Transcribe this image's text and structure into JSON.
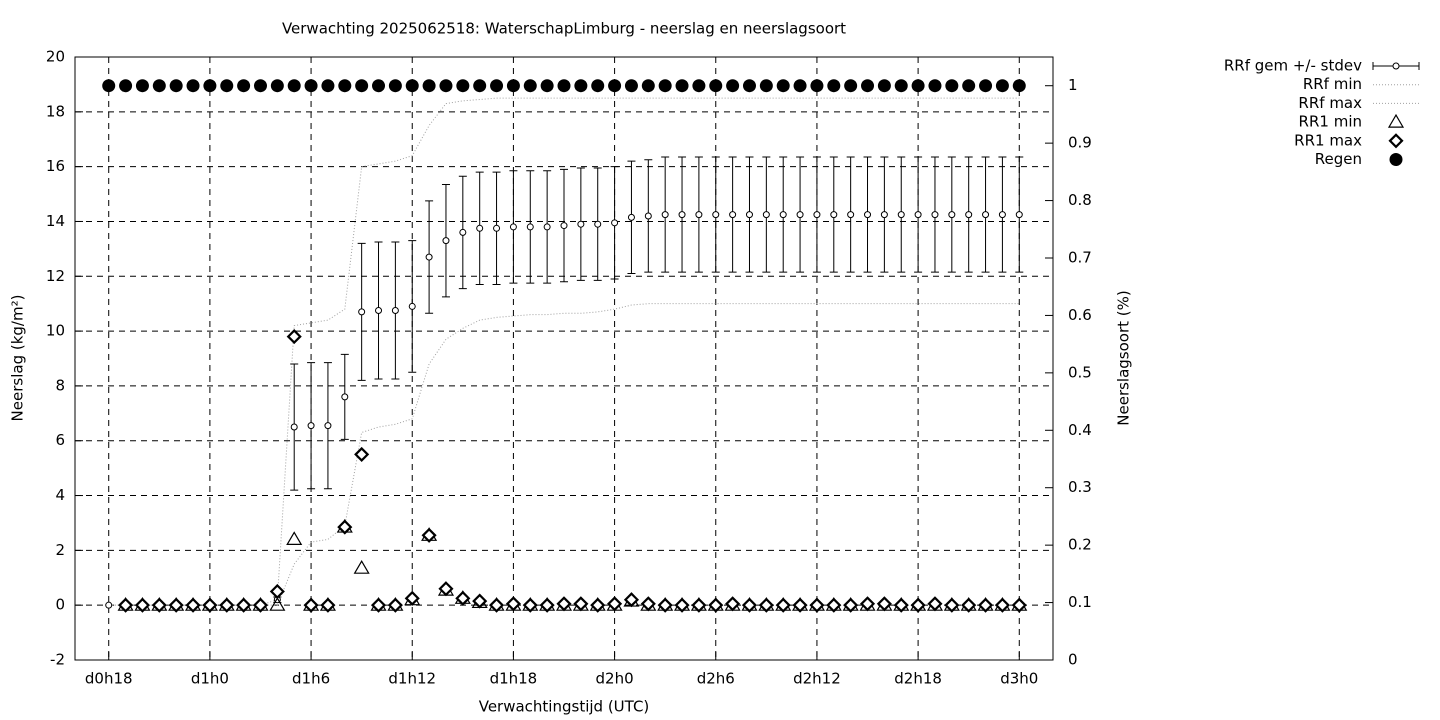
{
  "chart_data": {
    "type": "scatter",
    "title": "Verwachting 2025062518: WaterschapLimburg - neerslag en neerslagsoort",
    "xlabel": "Verwachtingstijd (UTC)",
    "ylabel": "Neerslag (kg/m²)",
    "y2label": "Neerslagsoort (%)",
    "x": [
      18,
      19,
      20,
      21,
      22,
      23,
      24,
      25,
      26,
      27,
      28,
      29,
      30,
      31,
      32,
      33,
      34,
      35,
      36,
      37,
      38,
      39,
      40,
      41,
      42,
      43,
      44,
      45,
      46,
      47,
      48,
      49,
      50,
      51,
      52,
      53,
      54,
      55,
      56,
      57,
      58,
      59,
      60,
      61,
      62,
      63,
      64,
      65,
      66,
      67,
      68,
      69,
      70,
      71,
      72
    ],
    "xlim": [
      16,
      74
    ],
    "xticks": [
      {
        "value": 18,
        "label": "d0h18"
      },
      {
        "value": 24,
        "label": "d1h0"
      },
      {
        "value": 30,
        "label": "d1h6"
      },
      {
        "value": 36,
        "label": "d1h12"
      },
      {
        "value": 42,
        "label": "d1h18"
      },
      {
        "value": 48,
        "label": "d2h0"
      },
      {
        "value": 54,
        "label": "d2h6"
      },
      {
        "value": 60,
        "label": "d2h12"
      },
      {
        "value": 66,
        "label": "d2h18"
      },
      {
        "value": 72,
        "label": "d3h0"
      }
    ],
    "ylim": [
      -2,
      20
    ],
    "yticks": [
      -2,
      0,
      2,
      4,
      6,
      8,
      10,
      12,
      14,
      16,
      18,
      20
    ],
    "y2lim": [
      0,
      1.05
    ],
    "y2ticks": [
      0,
      0.1,
      0.2,
      0.3,
      0.4,
      0.5,
      0.6,
      0.7,
      0.8,
      0.9,
      1
    ],
    "grid": true,
    "legend": "right",
    "series": [
      {
        "name": "RRf gem +/- stdev",
        "style": "errorbars",
        "marker": "circle",
        "color": "#000000",
        "values": [
          0,
          0,
          0,
          0,
          0,
          0,
          0,
          0,
          0,
          0,
          0.2,
          6.5,
          6.55,
          6.55,
          7.6,
          10.7,
          10.75,
          10.75,
          10.9,
          12.7,
          13.3,
          13.6,
          13.75,
          13.75,
          13.8,
          13.8,
          13.8,
          13.85,
          13.9,
          13.9,
          13.95,
          14.15,
          14.2,
          14.25,
          14.25,
          14.25,
          14.25,
          14.25,
          14.25,
          14.25,
          14.25,
          14.25,
          14.25,
          14.25,
          14.25,
          14.25,
          14.25,
          14.25,
          14.25,
          14.25,
          14.25,
          14.25,
          14.25,
          14.25,
          14.25
        ],
        "errors": [
          0,
          0,
          0,
          0,
          0,
          0,
          0,
          0,
          0,
          0,
          0.1,
          2.3,
          2.3,
          2.3,
          1.55,
          2.5,
          2.5,
          2.5,
          2.4,
          2.05,
          2.05,
          2.05,
          2.05,
          2.05,
          2.05,
          2.05,
          2.05,
          2.05,
          2.05,
          2.05,
          2.05,
          2.05,
          2.05,
          2.1,
          2.1,
          2.1,
          2.1,
          2.1,
          2.1,
          2.1,
          2.1,
          2.1,
          2.1,
          2.1,
          2.1,
          2.1,
          2.1,
          2.1,
          2.1,
          2.1,
          2.1,
          2.1,
          2.1,
          2.1,
          2.1
        ]
      },
      {
        "name": "RRf min",
        "style": "line",
        "color": "#a0a0a0",
        "values": [
          0,
          0,
          0,
          0,
          0,
          0,
          0,
          0,
          0,
          0,
          0,
          1.5,
          2.3,
          2.4,
          2.9,
          6.3,
          6.5,
          6.6,
          6.8,
          8.8,
          9.7,
          10.1,
          10.4,
          10.5,
          10.55,
          10.6,
          10.6,
          10.65,
          10.65,
          10.7,
          10.8,
          10.95,
          11,
          11,
          11,
          11,
          11,
          11,
          11,
          11,
          11,
          11,
          11,
          11,
          11,
          11,
          11,
          11,
          11,
          11,
          11,
          11,
          11,
          11,
          11
        ]
      },
      {
        "name": "RRf max",
        "style": "line",
        "color": "#a0a0a0",
        "values": [
          0,
          0,
          0,
          0,
          0,
          0,
          0,
          0,
          0,
          0,
          0.2,
          10.2,
          10.3,
          10.4,
          10.8,
          16,
          16.1,
          16.2,
          16.4,
          17.5,
          18.3,
          18.4,
          18.45,
          18.5,
          18.5,
          18.5,
          18.5,
          18.5,
          18.5,
          18.5,
          18.5,
          18.5,
          18.5,
          18.5,
          18.5,
          18.5,
          18.5,
          18.5,
          18.5,
          18.5,
          18.5,
          18.5,
          18.5,
          18.5,
          18.5,
          18.5,
          18.5,
          18.5,
          18.5,
          18.5,
          18.5,
          18.5,
          18.5,
          18.5,
          18.5
        ]
      },
      {
        "name": "RR1 min",
        "style": "points",
        "marker": "triangle",
        "color": "#000000",
        "values": [
          null,
          0,
          0,
          0,
          0,
          0,
          0,
          0,
          0,
          0,
          0,
          2.4,
          0,
          0,
          2.85,
          1.35,
          0,
          0,
          0.2,
          2.55,
          0.55,
          0.25,
          0.1,
          0,
          0,
          0,
          0,
          0,
          0,
          0,
          0,
          0.15,
          0,
          0,
          0,
          0,
          0,
          0,
          0,
          0,
          0,
          0,
          0,
          0,
          0,
          0,
          0,
          0,
          0,
          0,
          0,
          0,
          0,
          0,
          0
        ]
      },
      {
        "name": "RR1 max",
        "style": "points",
        "marker": "diamond",
        "color": "#000000",
        "values": [
          null,
          0,
          0,
          0,
          0,
          0,
          0,
          0,
          0,
          0,
          0.5,
          9.8,
          0,
          0,
          2.85,
          5.5,
          0,
          0,
          0.25,
          2.55,
          0.6,
          0.25,
          0.15,
          0,
          0.05,
          0,
          0,
          0.05,
          0.05,
          0,
          0.05,
          0.2,
          0.05,
          0,
          0,
          0,
          0,
          0.05,
          0,
          0,
          0,
          0,
          0,
          0,
          0,
          0.05,
          0.05,
          0,
          0,
          0.05,
          0,
          0,
          0,
          0,
          0
        ]
      },
      {
        "name": "Regen",
        "style": "points",
        "marker": "dot",
        "color": "#000000",
        "axis": "y2",
        "values": [
          1,
          1,
          1,
          1,
          1,
          1,
          1,
          1,
          1,
          1,
          1,
          1,
          1,
          1,
          1,
          1,
          1,
          1,
          1,
          1,
          1,
          1,
          1,
          1,
          1,
          1,
          1,
          1,
          1,
          1,
          1,
          1,
          1,
          1,
          1,
          1,
          1,
          1,
          1,
          1,
          1,
          1,
          1,
          1,
          1,
          1,
          1,
          1,
          1,
          1,
          1,
          1,
          1,
          1,
          1
        ]
      }
    ]
  }
}
